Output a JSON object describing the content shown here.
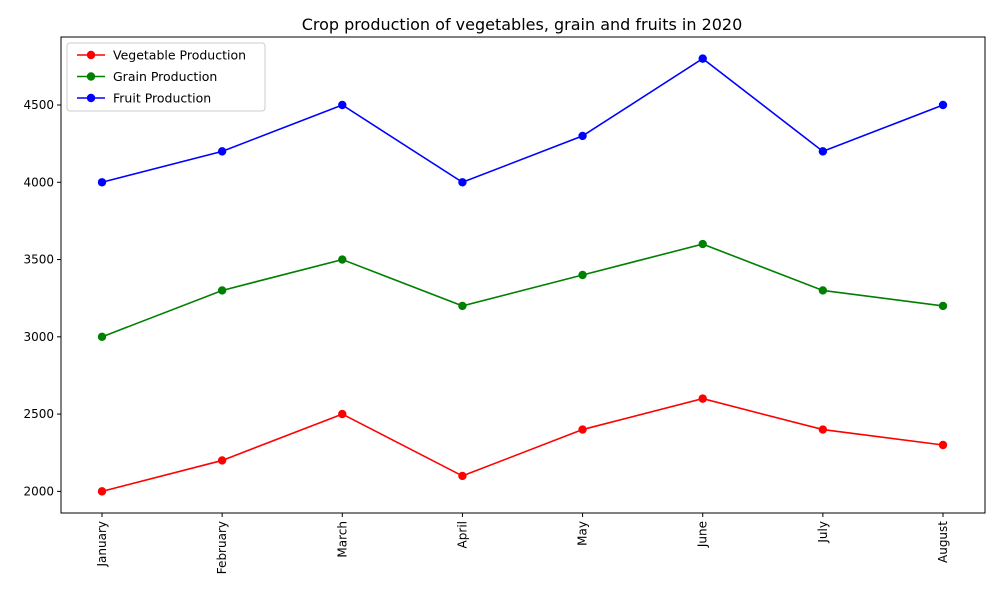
{
  "chart_data": {
    "type": "line",
    "title": "Crop production of vegetables, grain and fruits in 2020",
    "xlabel": "",
    "ylabel": "",
    "categories": [
      "January",
      "February",
      "March",
      "April",
      "May",
      "June",
      "July",
      "August"
    ],
    "yticks": [
      2000,
      2500,
      3000,
      3500,
      4000,
      4500
    ],
    "ylim": [
      1860,
      4940
    ],
    "grid": false,
    "legend_position": "top-left",
    "series": [
      {
        "name": "Vegetable Production",
        "color": "#ff0000",
        "values": [
          2000,
          2200,
          2500,
          2100,
          2400,
          2600,
          2400,
          2300
        ]
      },
      {
        "name": "Grain Production",
        "color": "#008000",
        "values": [
          3000,
          3300,
          3500,
          3200,
          3400,
          3600,
          3300,
          3200
        ]
      },
      {
        "name": "Fruit Production",
        "color": "#0000ff",
        "values": [
          4000,
          4200,
          4500,
          4000,
          4300,
          4800,
          4200,
          4500
        ]
      }
    ]
  }
}
